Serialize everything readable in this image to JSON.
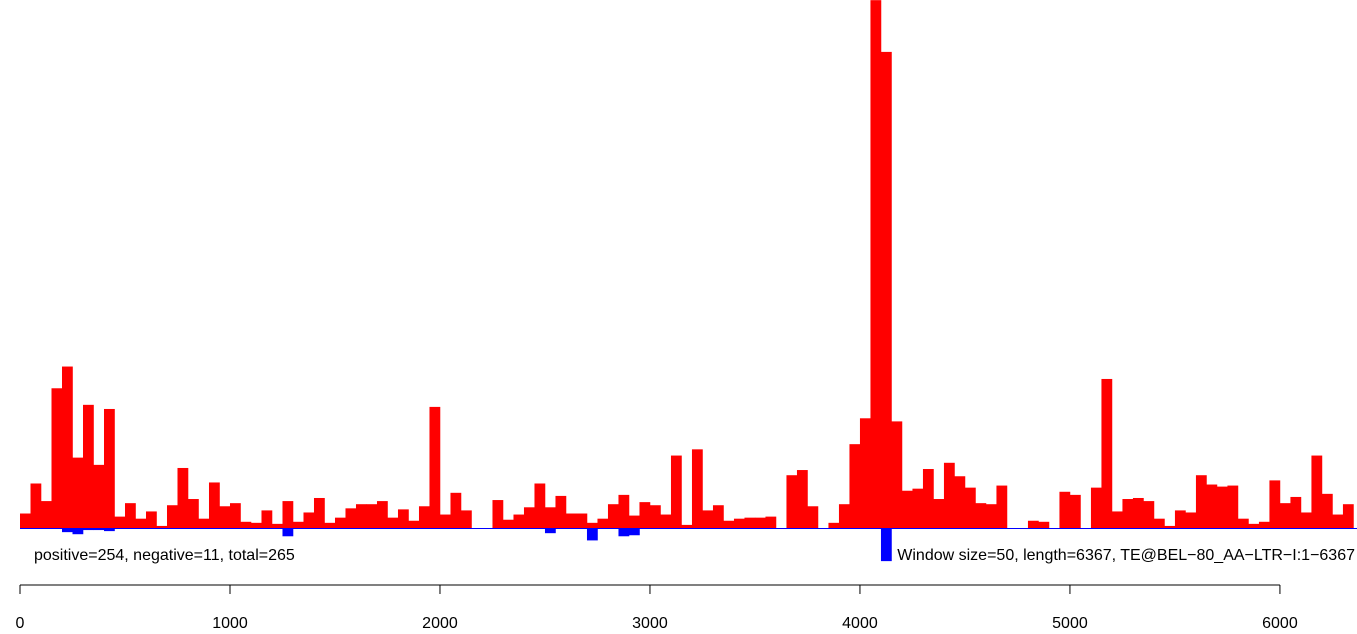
{
  "chart_data": {
    "type": "bar",
    "xlim": [
      0,
      6367
    ],
    "window_size": 50,
    "x_ticks": [
      0,
      1000,
      2000,
      3000,
      4000,
      5000,
      6000
    ],
    "colors": {
      "positive": "#ff0000",
      "negative": "#0000ff",
      "axis": "#000000"
    },
    "annotations": {
      "left": "positive=254, negative=11, total=265",
      "right": "Window size=50, length=6367, TE@BEL−80_AA−LTR−I:1−6367"
    },
    "bins_x": [
      0,
      50,
      100,
      150,
      200,
      250,
      300,
      350,
      400,
      450,
      500,
      550,
      600,
      650,
      700,
      750,
      800,
      850,
      900,
      950,
      1000,
      1050,
      1100,
      1150,
      1200,
      1250,
      1300,
      1350,
      1400,
      1450,
      1500,
      1550,
      1600,
      1650,
      1700,
      1750,
      1800,
      1850,
      1900,
      1950,
      2000,
      2050,
      2100,
      2150,
      2200,
      2250,
      2300,
      2350,
      2400,
      2450,
      2500,
      2550,
      2600,
      2650,
      2700,
      2750,
      2800,
      2850,
      2900,
      2950,
      3000,
      3050,
      3100,
      3150,
      3200,
      3250,
      3300,
      3350,
      3400,
      3450,
      3500,
      3550,
      3600,
      3650,
      3700,
      3750,
      3800,
      3850,
      3900,
      3950,
      4000,
      4050,
      4100,
      4150,
      4200,
      4250,
      4300,
      4350,
      4400,
      4450,
      4500,
      4550,
      4600,
      4650,
      4700,
      4750,
      4800,
      4850,
      4900,
      4950,
      5000,
      5050,
      5100,
      5150,
      5200,
      5250,
      5300,
      5350,
      5400,
      5450,
      5500,
      5550,
      5600,
      5650,
      5700,
      5750,
      5800,
      5850,
      5900,
      5950,
      6000,
      6050,
      6100,
      6150,
      6200,
      6250,
      6300
    ],
    "positive": [
      1.4,
      4.3,
      2.6,
      13.5,
      15.6,
      6.8,
      11.9,
      6.1,
      11.5,
      1.1,
      2.4,
      0.9,
      1.6,
      0.2,
      2.2,
      5.8,
      2.8,
      0.9,
      4.4,
      2.1,
      2.4,
      0.6,
      0.5,
      1.7,
      0.4,
      2.6,
      0.6,
      1.5,
      2.9,
      0.5,
      1.0,
      1.9,
      2.3,
      2.3,
      2.6,
      1.0,
      1.8,
      0.7,
      2.1,
      11.7,
      1.3,
      3.4,
      1.7,
      0,
      0,
      2.7,
      0.8,
      1.3,
      2.0,
      4.3,
      2.0,
      3.1,
      1.4,
      1.4,
      0.5,
      0.9,
      2.3,
      3.2,
      1.2,
      2.5,
      2.2,
      1.3,
      7.0,
      0.3,
      7.6,
      1.7,
      2.2,
      0.7,
      0.9,
      1.0,
      1.0,
      1.1,
      0,
      5.1,
      5.6,
      2.1,
      0,
      0.5,
      2.3,
      8.1,
      10.6,
      51.0,
      46.0,
      10.3,
      3.6,
      3.8,
      5.7,
      2.8,
      6.3,
      5.0,
      3.9,
      2.4,
      2.3,
      4.1,
      0,
      0,
      0.7,
      0.6,
      0,
      3.5,
      3.2,
      0,
      3.9,
      14.4,
      1.6,
      2.8,
      2.9,
      2.6,
      0.9,
      0.2,
      1.7,
      1.5,
      5.1,
      4.2,
      4.0,
      4.1,
      0.9,
      0.4,
      0.6,
      4.6,
      2.4,
      3.0,
      1.5,
      7.0,
      3.3,
      1.3,
      2.3,
      1.5,
      4.0
    ],
    "negative": [
      0,
      0,
      0,
      0,
      0.4,
      0.6,
      0.2,
      0.2,
      0.3,
      0,
      0,
      0,
      0,
      0,
      0,
      0,
      0,
      0,
      0,
      0,
      0,
      0,
      0,
      0,
      0,
      0.8,
      0,
      0,
      0,
      0,
      0,
      0,
      0,
      0,
      0,
      0,
      0,
      0,
      0,
      0,
      0,
      0,
      0,
      0,
      0,
      0,
      0,
      0,
      0,
      0,
      0.5,
      0,
      0,
      0,
      1.2,
      0,
      0,
      0.8,
      0.7,
      0,
      0,
      0,
      0,
      0,
      0,
      0,
      0,
      0,
      0,
      0,
      0,
      0,
      0,
      0,
      0,
      0,
      0,
      0,
      0,
      0,
      0,
      0,
      3.2,
      0,
      0,
      0,
      0,
      0,
      0,
      0,
      0,
      0,
      0,
      0,
      0,
      0,
      0,
      0,
      0,
      0,
      0,
      0,
      0,
      0,
      0,
      0,
      0,
      0,
      0,
      0,
      0,
      0,
      0,
      0,
      0,
      0,
      0,
      0,
      0,
      0,
      0,
      0,
      0,
      0,
      0,
      0,
      0,
      0,
      0
    ]
  }
}
